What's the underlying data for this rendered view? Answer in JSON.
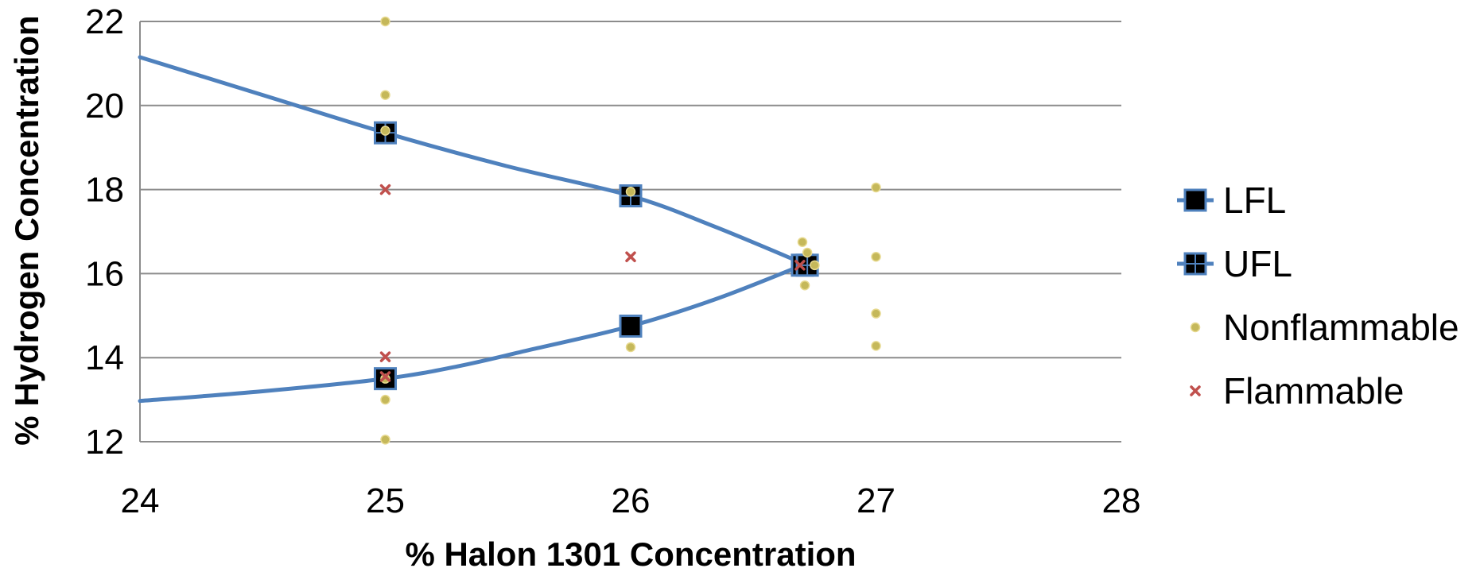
{
  "chart_data": {
    "type": "scatter",
    "xlabel": "% Halon 1301 Concentration",
    "ylabel": "% Hydrogen Concentration",
    "xlim": [
      24,
      28
    ],
    "ylim": [
      12,
      22
    ],
    "x_ticks": [
      "24",
      "25",
      "26",
      "27",
      "28"
    ],
    "y_ticks": [
      "12",
      "14",
      "16",
      "18",
      "20",
      "22"
    ],
    "grid": "horizontal",
    "legend_position": "right",
    "series": [
      {
        "name": "LFL",
        "kind": "line-with-markers",
        "color": "#4F81BD",
        "marker": "filled-square",
        "marker_points": [
          {
            "x": 25.0,
            "y": 13.5
          },
          {
            "x": 26.0,
            "y": 14.75
          },
          {
            "x": 26.7,
            "y": 16.2
          }
        ],
        "curve": [
          {
            "x": 24.0,
            "y": 12.97
          },
          {
            "x": 24.5,
            "y": 13.2
          },
          {
            "x": 25.0,
            "y": 13.5
          },
          {
            "x": 25.3,
            "y": 13.8
          },
          {
            "x": 25.6,
            "y": 14.2
          },
          {
            "x": 26.0,
            "y": 14.75
          },
          {
            "x": 26.35,
            "y": 15.4
          },
          {
            "x": 26.7,
            "y": 16.2
          }
        ]
      },
      {
        "name": "UFL",
        "kind": "line-with-markers",
        "color": "#4F81BD",
        "marker": "crossed-square",
        "marker_points": [
          {
            "x": 25.0,
            "y": 19.35
          },
          {
            "x": 26.0,
            "y": 17.85
          },
          {
            "x": 26.72,
            "y": 16.2
          }
        ],
        "curve": [
          {
            "x": 24.0,
            "y": 21.15
          },
          {
            "x": 24.5,
            "y": 20.25
          },
          {
            "x": 25.0,
            "y": 19.35
          },
          {
            "x": 25.5,
            "y": 18.55
          },
          {
            "x": 26.0,
            "y": 17.85
          },
          {
            "x": 26.35,
            "y": 17.1
          },
          {
            "x": 26.72,
            "y": 16.2
          }
        ]
      },
      {
        "name": "Nonflammable",
        "kind": "scatter",
        "color": "#C5B85A",
        "marker": "dot",
        "points": [
          {
            "x": 25.0,
            "y": 22.0
          },
          {
            "x": 25.0,
            "y": 20.25
          },
          {
            "x": 25.0,
            "y": 19.4
          },
          {
            "x": 25.0,
            "y": 13.5
          },
          {
            "x": 25.0,
            "y": 13.0
          },
          {
            "x": 25.0,
            "y": 12.05
          },
          {
            "x": 26.0,
            "y": 17.95
          },
          {
            "x": 26.0,
            "y": 14.25
          },
          {
            "x": 26.7,
            "y": 16.75
          },
          {
            "x": 26.72,
            "y": 16.5
          },
          {
            "x": 26.75,
            "y": 16.2
          },
          {
            "x": 26.71,
            "y": 15.72
          },
          {
            "x": 27.0,
            "y": 18.05
          },
          {
            "x": 27.0,
            "y": 16.4
          },
          {
            "x": 27.0,
            "y": 15.05
          },
          {
            "x": 27.0,
            "y": 14.28
          }
        ]
      },
      {
        "name": "Flammable",
        "kind": "scatter",
        "color": "#C0504D",
        "marker": "x",
        "points": [
          {
            "x": 25.0,
            "y": 18.0
          },
          {
            "x": 25.0,
            "y": 14.02
          },
          {
            "x": 25.0,
            "y": 13.55
          },
          {
            "x": 26.0,
            "y": 16.4
          },
          {
            "x": 26.69,
            "y": 16.2
          }
        ]
      }
    ]
  }
}
